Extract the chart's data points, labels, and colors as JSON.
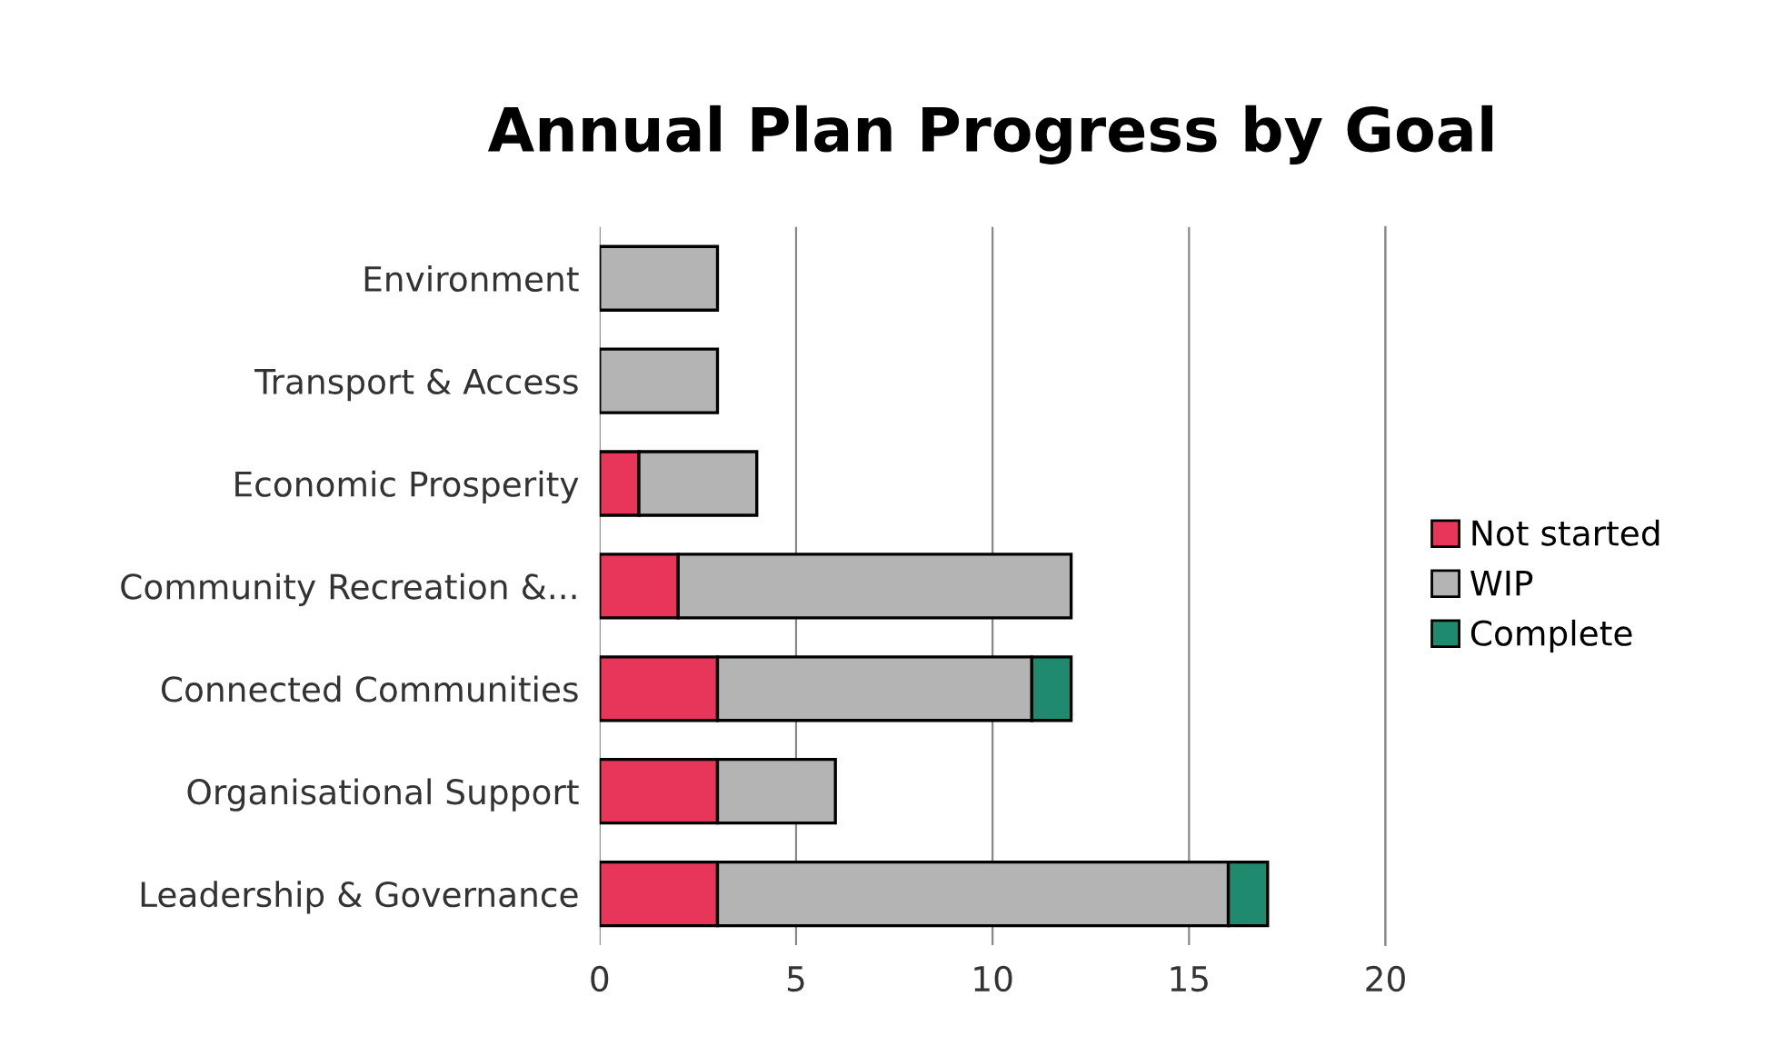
{
  "chart_data": {
    "type": "bar",
    "orientation": "horizontal",
    "stacked": true,
    "title": "Annual Plan Progress by Goal",
    "categories": [
      "Environment",
      "Transport & Access",
      "Economic Prosperity",
      "Community Recreation &...",
      "Connected Communities",
      "Organisational Support",
      "Leadership & Governance"
    ],
    "series": [
      {
        "name": "Not started",
        "color": "#e8365a",
        "values": [
          null,
          null,
          1,
          2,
          3,
          3,
          3
        ]
      },
      {
        "name": "WIP",
        "color": "#b4b4b4",
        "values": [
          3,
          3,
          3,
          10,
          8,
          3,
          13
        ]
      },
      {
        "name": "Complete",
        "color": "#1f8a6e",
        "values": [
          null,
          null,
          null,
          null,
          1,
          null,
          1
        ]
      }
    ],
    "xlim": [
      0,
      20
    ],
    "xticks": [
      0,
      5,
      10,
      15,
      20
    ],
    "grid": "x",
    "legend": "right"
  }
}
